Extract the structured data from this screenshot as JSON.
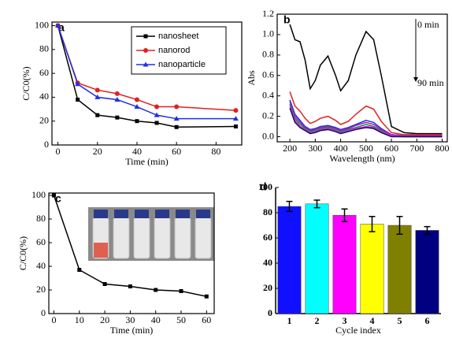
{
  "chart_data": [
    {
      "type": "line",
      "label": "a",
      "xlabel": "Time (min)",
      "ylabel": "C/C0(%)",
      "x": [
        0,
        10,
        20,
        30,
        40,
        50,
        60,
        90
      ],
      "series": [
        {
          "name": "nanosheet",
          "color": "#000000",
          "marker": "square",
          "values": [
            100,
            38,
            25,
            23,
            20,
            18.5,
            15,
            15.5
          ]
        },
        {
          "name": "nanorod",
          "color": "#e02020",
          "marker": "circle",
          "values": [
            100,
            52,
            46,
            43,
            38,
            32,
            32,
            29
          ]
        },
        {
          "name": "nanoparticle",
          "color": "#2030e0",
          "marker": "triangle",
          "values": [
            100,
            51,
            40,
            38,
            32,
            25,
            22,
            22
          ]
        }
      ],
      "xlim": [
        -3,
        93
      ],
      "ylim": [
        0,
        103
      ],
      "xticks": [
        0,
        20,
        40,
        60,
        80
      ],
      "yticks": [
        0,
        20,
        40,
        60,
        80,
        100
      ],
      "legend": "top right"
    },
    {
      "type": "line",
      "label": "b",
      "xlabel": "Wavelength (nm)",
      "ylabel": "Abs",
      "annotations": [
        "0 min",
        "90 min"
      ],
      "x": [
        200,
        220,
        240,
        260,
        280,
        300,
        320,
        350,
        380,
        400,
        430,
        460,
        500,
        530,
        560,
        600,
        650,
        700,
        800
      ],
      "series": [
        {
          "color": "#000000",
          "values": [
            1.1,
            0.95,
            0.93,
            0.75,
            0.47,
            0.55,
            0.7,
            0.79,
            0.6,
            0.45,
            0.55,
            0.8,
            1.03,
            0.95,
            0.6,
            0.1,
            0.04,
            0.03,
            0.03
          ]
        },
        {
          "color": "#e02020",
          "values": [
            0.44,
            0.3,
            0.25,
            0.18,
            0.13,
            0.15,
            0.18,
            0.2,
            0.16,
            0.12,
            0.15,
            0.22,
            0.3,
            0.27,
            0.15,
            0.04,
            0.02,
            0.02,
            0.02
          ]
        },
        {
          "color": "#2030e0",
          "values": [
            0.36,
            0.22,
            0.16,
            0.1,
            0.07,
            0.08,
            0.1,
            0.11,
            0.09,
            0.07,
            0.09,
            0.12,
            0.16,
            0.14,
            0.08,
            0.02,
            0.01,
            0.01,
            0.01
          ]
        },
        {
          "color": "#a020c0",
          "values": [
            0.34,
            0.2,
            0.14,
            0.09,
            0.06,
            0.07,
            0.09,
            0.1,
            0.08,
            0.06,
            0.08,
            0.11,
            0.14,
            0.12,
            0.07,
            0.02,
            0.01,
            0.01,
            0.01
          ]
        },
        {
          "color": "#1a8a3a",
          "values": [
            0.32,
            0.18,
            0.12,
            0.08,
            0.05,
            0.06,
            0.08,
            0.09,
            0.07,
            0.05,
            0.07,
            0.09,
            0.12,
            0.1,
            0.06,
            0.01,
            0.0,
            0.0,
            0.0
          ]
        },
        {
          "color": "#e020e0",
          "values": [
            0.3,
            0.16,
            0.1,
            0.07,
            0.04,
            0.05,
            0.07,
            0.08,
            0.06,
            0.04,
            0.06,
            0.08,
            0.1,
            0.09,
            0.05,
            0.01,
            0.0,
            0.0,
            0.0
          ]
        },
        {
          "color": "#101060",
          "values": [
            0.28,
            0.14,
            0.09,
            0.06,
            0.03,
            0.04,
            0.06,
            0.07,
            0.05,
            0.03,
            0.05,
            0.07,
            0.09,
            0.08,
            0.04,
            0.0,
            0.0,
            0.0,
            0.0
          ]
        }
      ],
      "xlim": [
        150,
        820
      ],
      "ylim": [
        -0.05,
        1.2
      ],
      "xticks": [
        200,
        300,
        400,
        500,
        600,
        700,
        800
      ],
      "yticks": [
        {
          "value": 0,
          "label": "0.0"
        },
        {
          "value": 0.2,
          "label": "0.2"
        },
        {
          "value": 0.4,
          "label": "0.4"
        },
        {
          "value": 0.6,
          "label": "0.6"
        },
        {
          "value": 0.8,
          "label": "0.8"
        },
        {
          "value": 1,
          "label": "1.0"
        },
        {
          "value": 1.2,
          "label": "1.2"
        }
      ]
    },
    {
      "type": "line",
      "label": "c",
      "xlabel": "Time (min)",
      "ylabel": "C/C0(%)",
      "x": [
        0,
        10,
        20,
        30,
        40,
        50,
        60
      ],
      "series": [
        {
          "color": "#000000",
          "marker": "square",
          "values": [
            100,
            37,
            25,
            23,
            20,
            19,
            14.5
          ]
        }
      ],
      "xlim": [
        -2,
        63
      ],
      "ylim": [
        0,
        102
      ],
      "xticks": [
        0,
        10,
        20,
        30,
        40,
        50,
        60
      ],
      "yticks": [
        0,
        20,
        40,
        60,
        80,
        100
      ]
    },
    {
      "type": "bar",
      "label": "d",
      "xlabel": "Cycle index",
      "categories": [
        "1",
        "2",
        "3",
        "4",
        "5",
        "6"
      ],
      "values": [
        85,
        87,
        78,
        71,
        70,
        66
      ],
      "errors": [
        4,
        3,
        5,
        6,
        7,
        3
      ],
      "colors": [
        "#1010ff",
        "#00ffff",
        "#ff00ff",
        "#ffff00",
        "#808000",
        "#000080"
      ],
      "ylim": [
        0,
        100
      ],
      "yticks": [
        0,
        20,
        40,
        60,
        80,
        100
      ]
    }
  ]
}
